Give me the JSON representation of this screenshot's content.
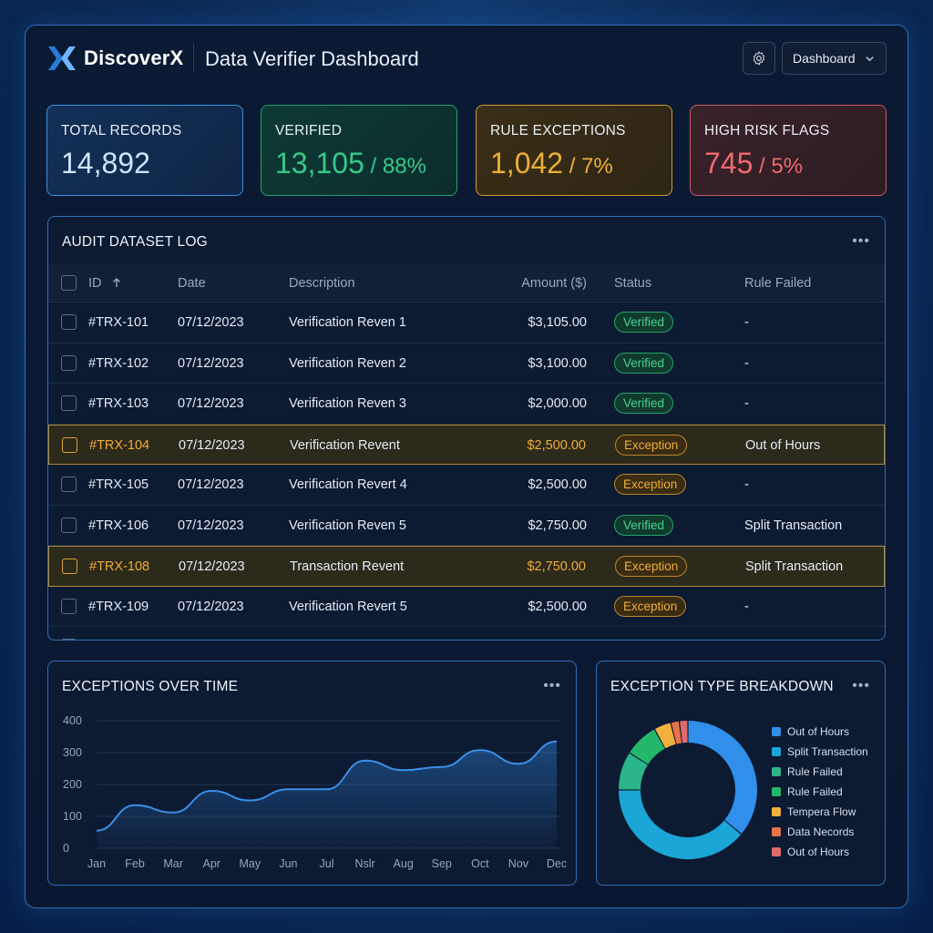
{
  "header": {
    "brand": "DiscoverX",
    "title": "Data Verifier Dashboard",
    "view_select": "Dashboard",
    "settings_icon": "gear-icon"
  },
  "kpis": [
    {
      "label": "TOTAL RECORDS",
      "value": "14,892",
      "sub": ""
    },
    {
      "label": "VERIFIED",
      "value": "13,105",
      "sub": " / 88%"
    },
    {
      "label": "RULE EXCEPTIONS",
      "value": "1,042",
      "sub": " / 7%"
    },
    {
      "label": "HIGH RISK FLAGS",
      "value": "745",
      "sub": " / 5%"
    }
  ],
  "audit": {
    "title": "AUDIT DATASET LOG",
    "columns": [
      "ID",
      "Date",
      "Description",
      "Amount ($)",
      "Status",
      "Rule Failed"
    ],
    "rows": [
      {
        "id": "#TRX-101",
        "date": "07/12/2023",
        "desc": "Verification Reven 1",
        "amount": "$3,105.00",
        "status": "Verified",
        "rule": "-"
      },
      {
        "id": "#TRX-102",
        "date": "07/12/2023",
        "desc": "Verification Reven 2",
        "amount": "$3,100.00",
        "status": "Verified",
        "rule": "-"
      },
      {
        "id": "#TRX-103",
        "date": "07/12/2023",
        "desc": "Verification Reven 3",
        "amount": "$2,000.00",
        "status": "Verified",
        "rule": "-"
      },
      {
        "id": "#TRX-104",
        "date": "07/12/2023",
        "desc": "Verification Revent",
        "amount": "$2,500.00",
        "status": "Exception",
        "rule": "Out of Hours"
      },
      {
        "id": "#TRX-105",
        "date": "07/12/2023",
        "desc": "Verification Revert 4",
        "amount": "$2,500.00",
        "status": "Exception",
        "rule": "-"
      },
      {
        "id": "#TRX-106",
        "date": "07/12/2023",
        "desc": "Verification Reven 5",
        "amount": "$2,750.00",
        "status": "Verified",
        "rule": "Split Transaction"
      },
      {
        "id": "#TRX-108",
        "date": "07/12/2023",
        "desc": "Transaction Revent",
        "amount": "$2,750.00",
        "status": "Exception",
        "rule": "Split Transaction"
      },
      {
        "id": "#TRX-109",
        "date": "07/12/2023",
        "desc": "Verification Revert 5",
        "amount": "$2,500.00",
        "status": "Exception",
        "rule": "-"
      }
    ],
    "highlighted_ids": [
      "#TRX-104",
      "#TRX-108"
    ]
  },
  "exceptions_over_time": {
    "title": "EXCEPTIONS OVER TIME"
  },
  "exception_breakdown": {
    "title": "EXCEPTION TYPE BREAKDOWN"
  },
  "chart_data": [
    {
      "type": "area",
      "title": "EXCEPTIONS OVER TIME",
      "x": [
        "Jan",
        "Feb",
        "Mar",
        "Apr",
        "May",
        "Jun",
        "Jul",
        "Nslr",
        "Aug",
        "Sep",
        "Oct",
        "Nov",
        "Dec"
      ],
      "y": [
        55,
        135,
        112,
        180,
        150,
        185,
        185,
        275,
        245,
        255,
        308,
        265,
        335
      ],
      "yticks": [
        0,
        100,
        200,
        300,
        400
      ],
      "ylim": [
        0,
        400
      ],
      "grid": true,
      "color": "#3b8fe8"
    },
    {
      "type": "pie",
      "title": "EXCEPTION TYPE BREAKDOWN",
      "donut": true,
      "legend_position": "right",
      "labels": [
        "Out of Hours",
        "Split Transaction",
        "Rule Failed",
        "Rule Failed",
        "Tempera Flow",
        "Data Necords",
        "Out of Hours"
      ],
      "values": [
        36,
        39,
        9,
        8,
        4,
        2,
        2
      ],
      "colors": [
        "#2f8fea",
        "#1aa6d6",
        "#2bb58a",
        "#23b86c",
        "#f2b13c",
        "#e8734a",
        "#e06a6a"
      ]
    }
  ]
}
